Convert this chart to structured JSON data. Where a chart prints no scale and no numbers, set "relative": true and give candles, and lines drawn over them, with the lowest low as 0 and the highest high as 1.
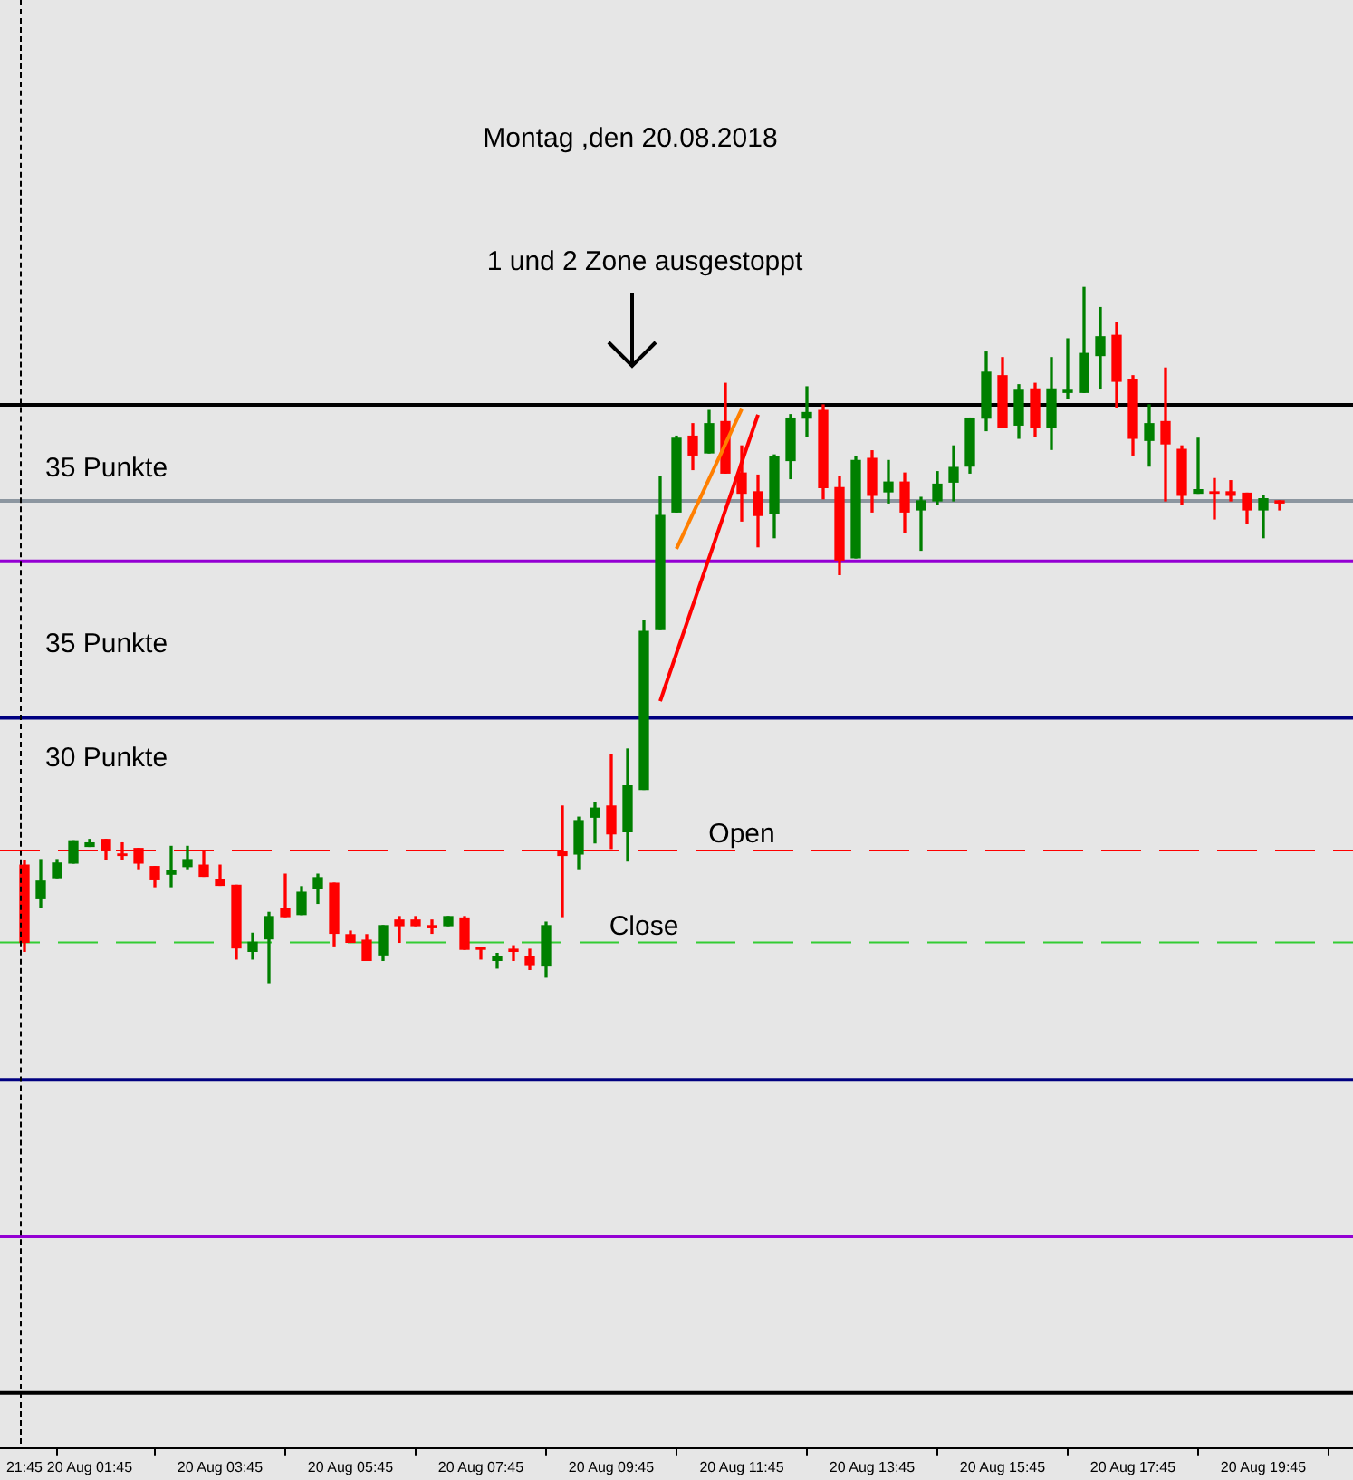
{
  "chart_data": {
    "type": "candlestick",
    "relative": true,
    "title": "Montag ,den 20.08.2018",
    "annotations": [
      "35 Punkte",
      "35 Punkte",
      "30 Punkte",
      "1 und 2 Zone ausgestoppt"
    ],
    "categories": [
      "21:45",
      null,
      null,
      null,
      "20 Aug 01:45",
      null,
      null,
      null,
      null,
      null,
      null,
      null,
      "20 Aug 03:45",
      null,
      null,
      null,
      null,
      null,
      null,
      null,
      "20 Aug 05:45",
      null,
      null,
      null,
      null,
      null,
      null,
      null,
      "20 Aug 07:45",
      null,
      null,
      null,
      null,
      null,
      null,
      null,
      "20 Aug 09:45",
      null,
      null,
      null,
      null,
      null,
      null,
      null,
      "20 Aug 11:45",
      null,
      null,
      null,
      null,
      null,
      null,
      null,
      "20 Aug 13:45",
      null,
      null,
      null,
      null,
      null,
      null,
      null,
      "20 Aug 15:45",
      null,
      null,
      null,
      null,
      null,
      null,
      null,
      "20 Aug 17:45",
      null,
      null,
      null,
      null,
      null,
      null,
      null,
      "20 Aug 19:45",
      null
    ],
    "ohlc": [
      [
        0.169,
        0.175,
        0.045,
        0.058
      ],
      [
        0.122,
        0.177,
        0.108,
        0.146
      ],
      [
        0.151,
        0.177,
        0.151,
        0.172
      ],
      [
        0.172,
        0.204,
        0.172,
        0.204
      ],
      [
        0.196,
        0.206,
        0.196,
        0.201
      ],
      [
        0.206,
        0.206,
        0.177,
        0.19
      ],
      [
        0.185,
        0.201,
        0.177,
        0.183
      ],
      [
        0.193,
        0.193,
        0.164,
        0.172
      ],
      [
        0.167,
        0.167,
        0.138,
        0.148
      ],
      [
        0.156,
        0.196,
        0.138,
        0.161
      ],
      [
        0.167,
        0.196,
        0.164,
        0.177
      ],
      [
        0.169,
        0.19,
        0.153,
        0.153
      ],
      [
        0.148,
        0.169,
        0.14,
        0.14
      ],
      [
        0.14,
        0.14,
        0.034,
        0.05
      ],
      [
        0.045,
        0.071,
        0.034,
        0.058
      ],
      [
        0.063,
        0.101,
        0,
        0.095
      ],
      [
        0.106,
        0.156,
        0.095,
        0.095
      ],
      [
        0.098,
        0.138,
        0.098,
        0.13
      ],
      [
        0.135,
        0.156,
        0.114,
        0.151
      ],
      [
        0.143,
        0.143,
        0.053,
        0.071
      ],
      [
        0.069,
        0.074,
        0.058,
        0.058
      ],
      [
        0.061,
        0.069,
        0.032,
        0.032
      ],
      [
        0.04,
        0.082,
        0.032,
        0.082
      ],
      [
        0.09,
        0.095,
        0.058,
        0.082
      ],
      [
        0.09,
        0.095,
        0.082,
        0.082
      ],
      [
        0.082,
        0.09,
        0.071,
        0.079
      ],
      [
        0.082,
        0.095,
        0.082,
        0.095
      ],
      [
        0.093,
        0.095,
        0.048,
        0.048
      ],
      [
        0.05,
        0.05,
        0.034,
        0.048
      ],
      [
        0.032,
        0.042,
        0.021,
        0.037
      ],
      [
        0.048,
        0.053,
        0.032,
        0.045
      ],
      [
        0.037,
        0.048,
        0.019,
        0.026
      ],
      [
        0.024,
        0.087,
        0.008,
        0.082
      ],
      [
        0.188,
        0.254,
        0.095,
        0.183
      ],
      [
        0.185,
        0.238,
        0.164,
        0.233
      ],
      [
        0.238,
        0.259,
        0.201,
        0.251
      ],
      [
        0.254,
        0.328,
        0.193,
        0.214
      ],
      [
        0.217,
        0.336,
        0.175,
        0.283
      ],
      [
        0.278,
        0.521,
        0.278,
        0.505
      ],
      [
        0.508,
        0.728,
        0.508,
        0.672
      ],
      [
        0.677,
        0.786,
        0.677,
        0.783
      ],
      [
        0.786,
        0.804,
        0.738,
        0.759
      ],
      [
        0.762,
        0.823,
        0.762,
        0.804
      ],
      [
        0.807,
        0.862,
        0.733,
        0.733
      ],
      [
        0.733,
        0.772,
        0.664,
        0.704
      ],
      [
        0.706,
        0.73,
        0.627,
        0.672
      ],
      [
        0.675,
        0.759,
        0.64,
        0.757
      ],
      [
        0.751,
        0.817,
        0.725,
        0.812
      ],
      [
        0.812,
        0.857,
        0.786,
        0.82
      ],
      [
        0.823,
        0.831,
        0.696,
        0.712
      ],
      [
        0.712,
        0.728,
        0.587,
        0.608
      ],
      [
        0.611,
        0.757,
        0.611,
        0.751
      ],
      [
        0.754,
        0.765,
        0.677,
        0.701
      ],
      [
        0.706,
        0.751,
        0.69,
        0.72
      ],
      [
        0.72,
        0.733,
        0.648,
        0.677
      ],
      [
        0.68,
        0.698,
        0.622,
        0.693
      ],
      [
        0.693,
        0.735,
        0.688,
        0.717
      ],
      [
        0.72,
        0.772,
        0.693,
        0.741
      ],
      [
        0.743,
        0.812,
        0.733,
        0.812
      ],
      [
        0.812,
        0.907,
        0.794,
        0.878
      ],
      [
        0.873,
        0.899,
        0.799,
        0.799
      ],
      [
        0.802,
        0.86,
        0.783,
        0.852
      ],
      [
        0.854,
        0.862,
        0.786,
        0.799
      ],
      [
        0.799,
        0.899,
        0.767,
        0.854
      ],
      [
        0.849,
        0.926,
        0.841,
        0.852
      ],
      [
        0.849,
        1,
        0.849,
        0.905
      ],
      [
        0.902,
        0.971,
        0.854,
        0.929
      ],
      [
        0.931,
        0.95,
        0.828,
        0.865
      ],
      [
        0.868,
        0.873,
        0.759,
        0.783
      ],
      [
        0.78,
        0.831,
        0.743,
        0.804
      ],
      [
        0.807,
        0.884,
        0.693,
        0.775
      ],
      [
        0.767,
        0.772,
        0.688,
        0.701
      ],
      [
        0.704,
        0.783,
        0.704,
        0.709
      ],
      [
        0.706,
        0.725,
        0.667,
        0.704
      ],
      [
        0.706,
        0.722,
        0.693,
        0.701
      ],
      [
        0.704,
        0.704,
        0.661,
        0.68
      ],
      [
        0.68,
        0.701,
        0.64,
        0.696
      ],
      [
        0.693,
        0.693,
        0.68,
        0.69
      ]
    ],
    "colors": [
      "#ff0000",
      "#008000",
      "#008000",
      "#008000",
      "#008000",
      "#ff0000",
      "#ff0000",
      "#ff0000",
      "#ff0000",
      "#008000",
      "#008000",
      "#ff0000",
      "#ff0000",
      "#ff0000",
      "#008000",
      "#008000",
      "#ff0000",
      "#008000",
      "#008000",
      "#ff0000",
      "#ff0000",
      "#ff0000",
      "#008000",
      "#ff0000",
      "#ff0000",
      "#ff0000",
      "#008000",
      "#ff0000",
      "#ff0000",
      "#008000",
      "#ff0000",
      "#ff0000",
      "#008000",
      "#ff0000",
      "#008000",
      "#008000",
      "#ff0000",
      "#008000",
      "#008000",
      "#008000",
      "#008000",
      "#ff0000",
      "#008000",
      "#ff0000",
      "#ff0000",
      "#ff0000",
      "#008000",
      "#008000",
      "#008000",
      "#ff0000",
      "#ff0000",
      "#008000",
      "#ff0000",
      "#008000",
      "#ff0000",
      "#008000",
      "#008000",
      "#008000",
      "#008000",
      "#008000",
      "#ff0000",
      "#008000",
      "#ff0000",
      "#008000",
      "#008000",
      "#008000",
      "#008000",
      "#ff0000",
      "#ff0000",
      "#008000",
      "#ff0000",
      "#ff0000",
      "#008000",
      "#ff0000",
      "#ff0000",
      "#ff0000",
      "#008000",
      "#ff0000"
    ],
    "series": [
      {
        "type": "line",
        "color": "#ff7f00",
        "values": [
          null,
          null,
          null,
          null,
          null,
          null,
          null,
          null,
          null,
          null,
          null,
          null,
          null,
          null,
          null,
          null,
          null,
          null,
          null,
          null,
          null,
          null,
          null,
          null,
          null,
          null,
          null,
          null,
          null,
          null,
          null,
          null,
          null,
          null,
          null,
          null,
          null,
          null,
          null,
          null,
          0.624,
          null,
          null,
          null,
          0.825,
          null,
          null,
          null,
          null,
          null,
          null,
          null,
          null,
          null,
          null,
          null,
          null,
          null,
          null,
          null,
          null,
          null,
          null,
          null,
          null,
          null,
          null,
          null,
          null,
          null,
          null,
          null,
          null,
          null,
          null,
          null,
          null,
          null
        ]
      },
      {
        "type": "line",
        "color": "#ff0000",
        "values": [
          null,
          null,
          null,
          null,
          null,
          null,
          null,
          null,
          null,
          null,
          null,
          null,
          null,
          null,
          null,
          null,
          null,
          null,
          null,
          null,
          null,
          null,
          null,
          null,
          null,
          null,
          null,
          null,
          null,
          null,
          null,
          null,
          null,
          null,
          null,
          null,
          null,
          null,
          null,
          0.405,
          null,
          null,
          null,
          null,
          null,
          0.817,
          null,
          null,
          null,
          null,
          null,
          null,
          null,
          null,
          null,
          null,
          null,
          null,
          null,
          null,
          null,
          null,
          null,
          null,
          null,
          null,
          null,
          null,
          null,
          null,
          null,
          null,
          null,
          null,
          null,
          null,
          null,
          null
        ]
      }
    ],
    "ref_lines": [
      {
        "axis": "y",
        "value": 0.831,
        "color": "#000000"
      },
      {
        "axis": "y",
        "value": 0.693,
        "color": "#8c96a0"
      },
      {
        "axis": "y",
        "value": 0.606,
        "color": "#9400d3"
      },
      {
        "axis": "y",
        "value": 0.381,
        "color": "#000080"
      },
      {
        "axis": "y",
        "value": 0.19,
        "label": "Open",
        "color": "#ff0000",
        "line_style": "dashed"
      },
      {
        "axis": "y",
        "value": 0.058,
        "label": "Close",
        "color": "#33cc33",
        "line_style": "dashed"
      },
      {
        "axis": "y",
        "value": -0.14,
        "color": "#000080"
      },
      {
        "axis": "y",
        "value": -0.365,
        "color": "#9400d3"
      },
      {
        "axis": "y",
        "value": -0.59,
        "color": "#000000"
      }
    ]
  }
}
